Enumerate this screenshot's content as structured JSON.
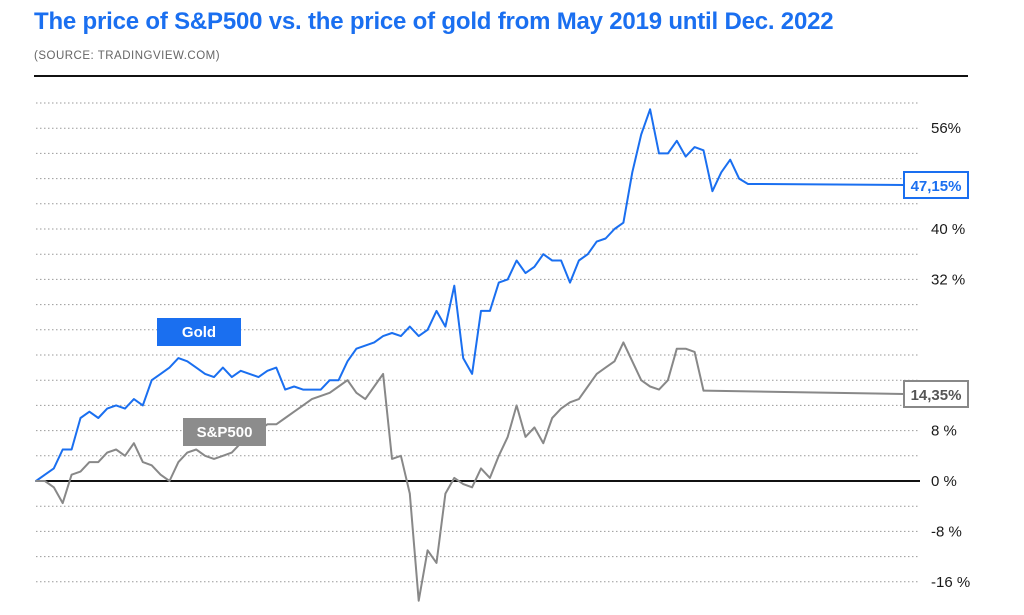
{
  "header": {
    "title": "The price of S&P500 vs. the price of gold from May 2019 until Dec. 2022",
    "subtitle": "(SOURCE: TRADINGVIEW.COM)"
  },
  "colors": {
    "gold": "#1a6ff0",
    "sp500": "#888888",
    "zero_line": "#111111",
    "grid": "#9a9a9a"
  },
  "chart_data": {
    "type": "line",
    "title": "The price of S&P500 vs. the price of gold from May 2019 until Dec. 2022",
    "xlabel": "",
    "ylabel": "",
    "xlim": [
      "2019-05",
      "2022-12"
    ],
    "ylim": [
      -18,
      62
    ],
    "yticks": [
      {
        "value": 56,
        "label": "56%"
      },
      {
        "value": 40,
        "label": "40 %"
      },
      {
        "value": 32,
        "label": "32 %"
      },
      {
        "value": 8,
        "label": "8 %"
      },
      {
        "value": 0,
        "label": "0 %"
      },
      {
        "value": -8,
        "label": "-8 %"
      },
      {
        "value": -16,
        "label": "-16 %"
      }
    ],
    "gridlines": [
      60,
      56,
      52,
      48,
      44,
      40,
      36,
      32,
      28,
      24,
      20,
      16,
      12,
      8,
      4,
      -4,
      -8,
      -12,
      -16
    ],
    "grid": true,
    "series": [
      {
        "name": "Gold",
        "label": "Gold",
        "end_label": "47,15%",
        "values": [
          [
            0,
            0
          ],
          [
            1,
            1
          ],
          [
            2,
            2
          ],
          [
            3,
            5
          ],
          [
            4,
            5
          ],
          [
            5,
            10
          ],
          [
            6,
            11
          ],
          [
            7,
            10
          ],
          [
            8,
            11.5
          ],
          [
            9,
            12
          ],
          [
            10,
            11.5
          ],
          [
            11,
            13
          ],
          [
            12,
            12
          ],
          [
            13,
            16
          ],
          [
            14,
            17
          ],
          [
            15,
            18
          ],
          [
            16,
            19.5
          ],
          [
            17,
            19
          ],
          [
            18,
            18
          ],
          [
            19,
            17
          ],
          [
            20,
            16.5
          ],
          [
            21,
            18
          ],
          [
            22,
            16.5
          ],
          [
            23,
            17.5
          ],
          [
            24,
            17
          ],
          [
            25,
            16.5
          ],
          [
            26,
            17.5
          ],
          [
            27,
            18
          ],
          [
            28,
            14.5
          ],
          [
            29,
            15
          ],
          [
            30,
            14.5
          ],
          [
            31,
            14.5
          ],
          [
            32,
            14.5
          ],
          [
            33,
            16
          ],
          [
            34,
            16
          ],
          [
            35,
            19
          ],
          [
            36,
            21
          ],
          [
            37,
            21.5
          ],
          [
            38,
            22
          ],
          [
            39,
            23
          ],
          [
            40,
            23.5
          ],
          [
            41,
            23
          ],
          [
            42,
            24.5
          ],
          [
            43,
            23
          ],
          [
            44,
            24
          ],
          [
            45,
            27
          ],
          [
            46,
            24.5
          ],
          [
            47,
            31
          ],
          [
            48,
            19.5
          ],
          [
            49,
            17
          ],
          [
            50,
            27
          ],
          [
            51,
            27
          ],
          [
            52,
            31.5
          ],
          [
            53,
            32
          ],
          [
            54,
            35
          ],
          [
            55,
            33
          ],
          [
            56,
            34
          ],
          [
            57,
            36
          ],
          [
            58,
            35
          ],
          [
            59,
            35
          ],
          [
            60,
            31.5
          ],
          [
            61,
            35
          ],
          [
            62,
            36
          ],
          [
            63,
            38
          ],
          [
            64,
            38.5
          ],
          [
            65,
            40
          ],
          [
            66,
            41
          ],
          [
            67,
            49
          ],
          [
            68,
            55
          ],
          [
            69,
            59
          ],
          [
            70,
            52
          ],
          [
            71,
            52
          ],
          [
            72,
            54
          ],
          [
            73,
            51.5
          ],
          [
            74,
            53
          ],
          [
            75,
            52.5
          ],
          [
            76,
            46
          ],
          [
            77,
            49
          ],
          [
            78,
            51
          ],
          [
            79,
            48
          ],
          [
            80,
            47.15
          ]
        ]
      },
      {
        "name": "S&P500",
        "label": "S&P500",
        "end_label": "14,35%",
        "values": [
          [
            0,
            0
          ],
          [
            1,
            0
          ],
          [
            2,
            -1
          ],
          [
            3,
            -3.5
          ],
          [
            4,
            1
          ],
          [
            5,
            1.5
          ],
          [
            6,
            3
          ],
          [
            7,
            3
          ],
          [
            8,
            4.5
          ],
          [
            9,
            5
          ],
          [
            10,
            4
          ],
          [
            11,
            6
          ],
          [
            12,
            3
          ],
          [
            13,
            2.5
          ],
          [
            14,
            1
          ],
          [
            15,
            0
          ],
          [
            16,
            3
          ],
          [
            17,
            4.5
          ],
          [
            18,
            5
          ],
          [
            19,
            4
          ],
          [
            20,
            3.5
          ],
          [
            21,
            4
          ],
          [
            22,
            4.5
          ],
          [
            23,
            6
          ],
          [
            24,
            7
          ],
          [
            25,
            8
          ],
          [
            26,
            9
          ],
          [
            27,
            9
          ],
          [
            28,
            10
          ],
          [
            29,
            11
          ],
          [
            30,
            12
          ],
          [
            31,
            13
          ],
          [
            32,
            13.5
          ],
          [
            33,
            14
          ],
          [
            34,
            15
          ],
          [
            35,
            16
          ],
          [
            36,
            14
          ],
          [
            37,
            13
          ],
          [
            38,
            15
          ],
          [
            39,
            17
          ],
          [
            40,
            3.5
          ],
          [
            41,
            4
          ],
          [
            42,
            -2
          ],
          [
            43,
            -19
          ],
          [
            44,
            -11
          ],
          [
            45,
            -13
          ],
          [
            46,
            -2
          ],
          [
            47,
            0.5
          ],
          [
            48,
            -0.5
          ],
          [
            49,
            -1
          ],
          [
            50,
            2
          ],
          [
            51,
            0.5
          ],
          [
            52,
            4
          ],
          [
            53,
            7
          ],
          [
            54,
            12
          ],
          [
            55,
            7
          ],
          [
            56,
            8.5
          ],
          [
            57,
            6
          ],
          [
            58,
            10
          ],
          [
            59,
            11.5
          ],
          [
            60,
            12.5
          ],
          [
            61,
            13
          ],
          [
            62,
            15
          ],
          [
            63,
            17
          ],
          [
            64,
            18
          ],
          [
            65,
            19
          ],
          [
            66,
            22
          ],
          [
            67,
            19
          ],
          [
            68,
            16
          ],
          [
            69,
            15
          ],
          [
            70,
            14.5
          ],
          [
            71,
            16
          ],
          [
            72,
            21
          ],
          [
            73,
            21
          ],
          [
            74,
            20.5
          ],
          [
            75,
            14.35
          ]
        ]
      }
    ]
  }
}
